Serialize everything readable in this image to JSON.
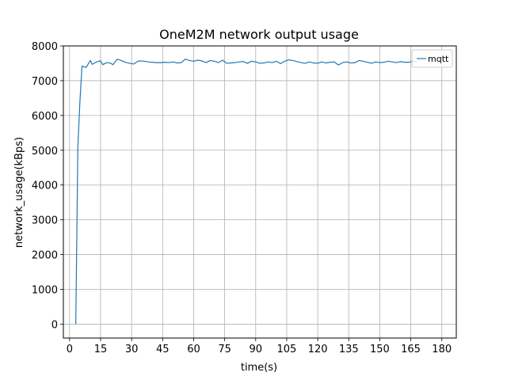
{
  "chart_data": {
    "type": "line",
    "title": "OneM2M network output usage",
    "xlabel": "time(s)",
    "ylabel": "network_usage(kBps)",
    "xlim": [
      -3,
      187
    ],
    "ylim": [
      -400,
      8000
    ],
    "xticks": [
      0,
      15,
      30,
      45,
      60,
      75,
      90,
      105,
      120,
      135,
      150,
      165,
      180
    ],
    "yticks": [
      0,
      1000,
      2000,
      3000,
      4000,
      5000,
      6000,
      7000,
      8000
    ],
    "grid": true,
    "legend_position": "upper right",
    "series": [
      {
        "name": "mqtt",
        "color": "#1f77b4",
        "x": [
          3,
          4,
          5,
          6,
          8,
          10,
          11,
          13,
          15,
          16,
          18,
          20,
          21,
          23,
          25,
          27,
          29,
          31,
          33,
          34,
          36,
          38,
          40,
          42,
          44,
          46,
          48,
          50,
          52,
          54,
          56,
          58,
          60,
          62,
          64,
          66,
          68,
          70,
          72,
          74,
          76,
          78,
          80,
          82,
          84,
          86,
          88,
          90,
          92,
          94,
          96,
          98,
          100,
          102,
          104,
          106,
          108,
          110,
          112,
          114,
          116,
          118,
          120,
          122,
          124,
          126,
          128,
          130,
          132,
          134,
          136,
          138,
          140,
          142,
          144,
          146,
          148,
          150,
          152,
          154,
          156,
          158,
          160,
          162,
          164,
          166,
          168
        ],
        "values": [
          0,
          5100,
          6400,
          7420,
          7380,
          7580,
          7470,
          7540,
          7570,
          7460,
          7520,
          7500,
          7460,
          7620,
          7580,
          7530,
          7500,
          7480,
          7560,
          7570,
          7560,
          7540,
          7530,
          7520,
          7520,
          7530,
          7520,
          7540,
          7510,
          7520,
          7620,
          7580,
          7560,
          7590,
          7570,
          7520,
          7580,
          7560,
          7520,
          7590,
          7500,
          7510,
          7520,
          7540,
          7550,
          7500,
          7560,
          7540,
          7500,
          7510,
          7540,
          7520,
          7560,
          7490,
          7560,
          7600,
          7580,
          7550,
          7520,
          7500,
          7540,
          7510,
          7500,
          7540,
          7510,
          7530,
          7540,
          7450,
          7520,
          7540,
          7510,
          7520,
          7580,
          7560,
          7530,
          7500,
          7540,
          7520,
          7530,
          7560,
          7540,
          7520,
          7550,
          7530,
          7530,
          7560,
          7540
        ]
      }
    ]
  }
}
